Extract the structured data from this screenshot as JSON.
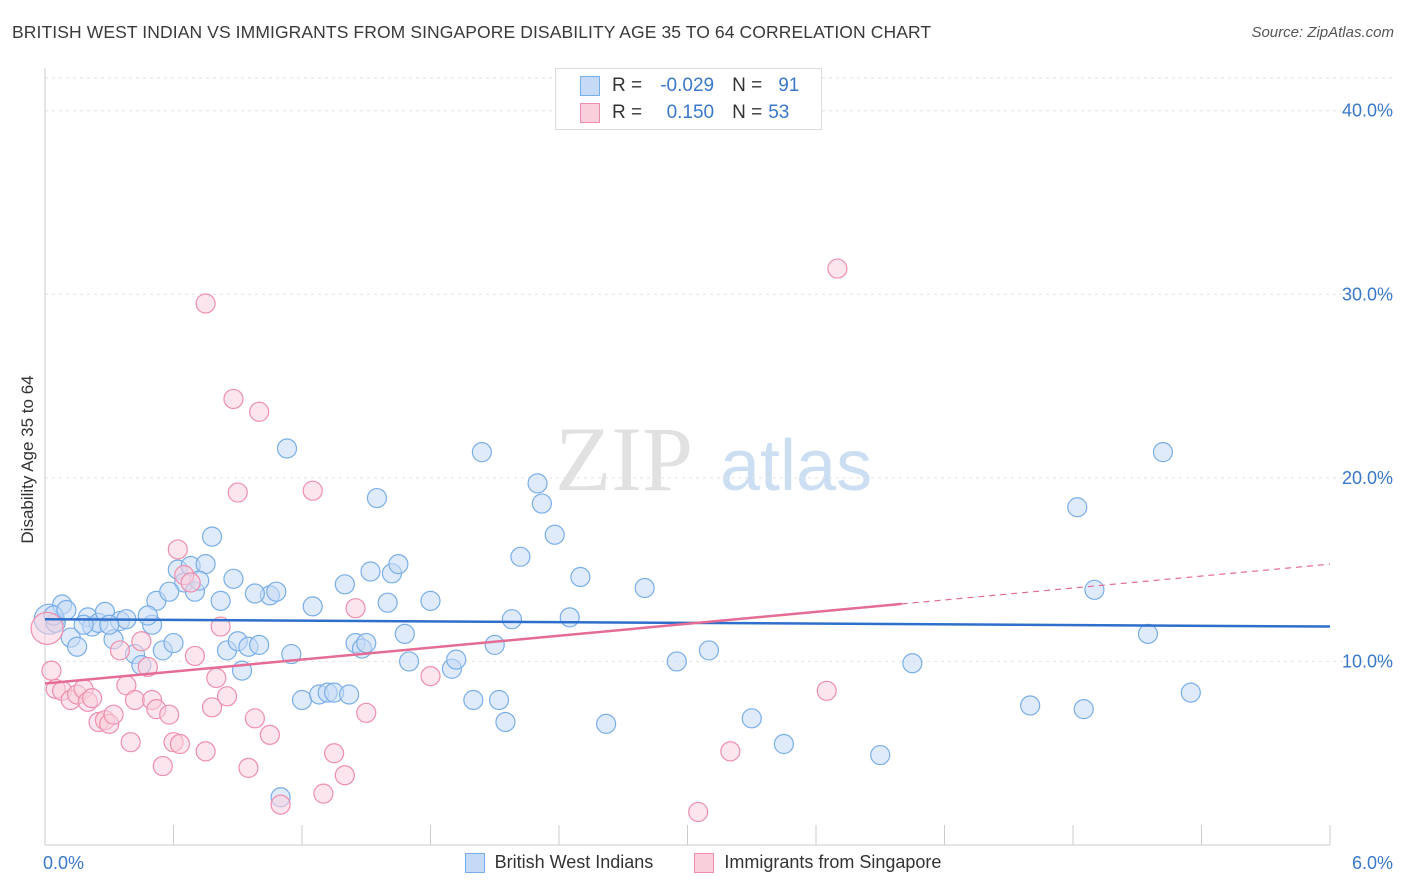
{
  "title": "BRITISH WEST INDIAN VS IMMIGRANTS FROM SINGAPORE DISABILITY AGE 35 TO 64 CORRELATION CHART",
  "source": "Source: ZipAtlas.com",
  "watermark": {
    "zip": "ZIP",
    "atlas": "atlas"
  },
  "correlation_legend": [
    {
      "r_label": "R =",
      "r_value": "-0.029",
      "n_label": "N =",
      "n_value": "91",
      "color": "#7aaee8",
      "fill": "#c5daf6"
    },
    {
      "r_label": "R =",
      "r_value": "0.150",
      "n_label": "N =",
      "n_value": "53",
      "color": "#ee8fae",
      "fill": "#f9cfdc"
    }
  ],
  "chart_data": {
    "type": "scatter",
    "title": "BRITISH WEST INDIAN VS IMMIGRANTS FROM SINGAPORE DISABILITY AGE 35 TO 64 CORRELATION CHART",
    "xlabel": "",
    "ylabel": "Disability Age 35 to 64",
    "xlim": [
      0,
      6
    ],
    "ylim": [
      0,
      42
    ],
    "x_tick_labels": [
      "0.0%",
      "6.0%"
    ],
    "y_ticks": [
      10,
      20,
      30,
      40
    ],
    "y_tick_labels": [
      "10.0%",
      "20.0%",
      "30.0%",
      "40.0%"
    ],
    "grid": "horizontal dashed",
    "legend_position": "bottom",
    "series": [
      {
        "name": "British West Indians",
        "color": "#7aaee8",
        "fill": "#c5daf6",
        "line_color": "#2f6fcc",
        "trend": {
          "x": [
            0,
            6
          ],
          "y": [
            12.3,
            11.9
          ]
        },
        "points": [
          [
            0.02,
            12.3
          ],
          [
            0.05,
            12.1
          ],
          [
            0.08,
            13.1
          ],
          [
            0.12,
            11.3
          ],
          [
            0.15,
            10.8
          ],
          [
            0.2,
            12.4
          ],
          [
            0.22,
            11.9
          ],
          [
            0.25,
            12.1
          ],
          [
            0.28,
            12.7
          ],
          [
            0.32,
            11.2
          ],
          [
            0.35,
            12.2
          ],
          [
            0.38,
            12.3
          ],
          [
            0.42,
            10.4
          ],
          [
            0.45,
            9.8
          ],
          [
            0.5,
            12.0
          ],
          [
            0.52,
            13.3
          ],
          [
            0.55,
            10.6
          ],
          [
            0.6,
            11.0
          ],
          [
            0.62,
            15.0
          ],
          [
            0.65,
            14.3
          ],
          [
            0.68,
            15.2
          ],
          [
            0.7,
            13.8
          ],
          [
            0.75,
            15.3
          ],
          [
            0.78,
            16.8
          ],
          [
            0.82,
            13.3
          ],
          [
            0.85,
            10.6
          ],
          [
            0.88,
            14.5
          ],
          [
            0.9,
            11.1
          ],
          [
            0.92,
            9.5
          ],
          [
            0.95,
            10.8
          ],
          [
            1.05,
            13.6
          ],
          [
            1.08,
            13.8
          ],
          [
            1.1,
            2.6
          ],
          [
            1.15,
            10.4
          ],
          [
            1.2,
            7.9
          ],
          [
            1.25,
            13.0
          ],
          [
            1.28,
            8.2
          ],
          [
            1.32,
            8.3
          ],
          [
            1.35,
            8.3
          ],
          [
            1.4,
            14.2
          ],
          [
            1.45,
            11.0
          ],
          [
            1.48,
            10.7
          ],
          [
            1.52,
            14.9
          ],
          [
            1.55,
            18.9
          ],
          [
            1.6,
            13.2
          ],
          [
            1.62,
            14.8
          ],
          [
            1.65,
            15.3
          ],
          [
            1.68,
            11.5
          ],
          [
            1.7,
            10.0
          ],
          [
            1.8,
            13.3
          ],
          [
            1.9,
            9.6
          ],
          [
            1.92,
            10.1
          ],
          [
            2.0,
            7.9
          ],
          [
            2.1,
            10.9
          ],
          [
            2.12,
            7.9
          ],
          [
            2.15,
            6.7
          ],
          [
            2.18,
            12.3
          ],
          [
            2.22,
            15.7
          ],
          [
            2.3,
            19.7
          ],
          [
            2.32,
            18.6
          ],
          [
            2.38,
            16.9
          ],
          [
            2.5,
            14.6
          ],
          [
            2.62,
            6.6
          ],
          [
            2.8,
            14.0
          ],
          [
            2.95,
            10.0
          ],
          [
            3.1,
            10.6
          ],
          [
            3.3,
            6.9
          ],
          [
            3.45,
            5.5
          ],
          [
            3.9,
            4.9
          ],
          [
            4.05,
            9.9
          ],
          [
            4.6,
            7.6
          ],
          [
            4.85,
            7.4
          ],
          [
            4.9,
            13.9
          ],
          [
            5.15,
            11.5
          ],
          [
            5.35,
            8.3
          ],
          [
            1.13,
            21.6
          ],
          [
            2.04,
            21.4
          ],
          [
            4.82,
            18.4
          ],
          [
            5.22,
            21.4
          ],
          [
            0.04,
            12.5
          ],
          [
            0.1,
            12.8
          ],
          [
            0.3,
            12.0
          ],
          [
            0.48,
            12.5
          ],
          [
            0.72,
            14.4
          ],
          [
            1.0,
            10.9
          ],
          [
            1.42,
            8.2
          ],
          [
            1.5,
            11.0
          ],
          [
            0.58,
            13.8
          ],
          [
            0.18,
            12.0
          ],
          [
            0.98,
            13.7
          ],
          [
            2.45,
            12.4
          ]
        ]
      },
      {
        "name": "Immigrants from Singapore",
        "color": "#ee8fae",
        "fill": "#f9cfdc",
        "line_color": "#e46c95",
        "trend": {
          "x": [
            0,
            6
          ],
          "y": [
            8.8,
            15.3
          ]
        },
        "trend_solid_until_x": 4.0,
        "points": [
          [
            0.01,
            11.8
          ],
          [
            0.03,
            9.5
          ],
          [
            0.05,
            8.5
          ],
          [
            0.08,
            8.4
          ],
          [
            0.12,
            7.9
          ],
          [
            0.15,
            8.2
          ],
          [
            0.18,
            8.5
          ],
          [
            0.2,
            7.8
          ],
          [
            0.22,
            8.0
          ],
          [
            0.25,
            6.7
          ],
          [
            0.28,
            6.8
          ],
          [
            0.3,
            6.6
          ],
          [
            0.32,
            7.1
          ],
          [
            0.35,
            10.6
          ],
          [
            0.38,
            8.7
          ],
          [
            0.4,
            5.6
          ],
          [
            0.42,
            7.9
          ],
          [
            0.45,
            11.1
          ],
          [
            0.48,
            9.7
          ],
          [
            0.5,
            7.9
          ],
          [
            0.52,
            7.4
          ],
          [
            0.55,
            4.3
          ],
          [
            0.58,
            7.1
          ],
          [
            0.6,
            5.6
          ],
          [
            0.62,
            16.1
          ],
          [
            0.65,
            14.7
          ],
          [
            0.68,
            14.3
          ],
          [
            0.7,
            10.3
          ],
          [
            0.75,
            5.1
          ],
          [
            0.78,
            7.5
          ],
          [
            0.8,
            9.1
          ],
          [
            0.82,
            11.9
          ],
          [
            0.85,
            8.1
          ],
          [
            0.88,
            24.3
          ],
          [
            0.9,
            19.2
          ],
          [
            0.95,
            4.2
          ],
          [
            0.98,
            6.9
          ],
          [
            1.0,
            23.6
          ],
          [
            1.05,
            6.0
          ],
          [
            1.1,
            2.2
          ],
          [
            1.25,
            19.3
          ],
          [
            1.3,
            2.8
          ],
          [
            1.35,
            5.0
          ],
          [
            1.4,
            3.8
          ],
          [
            1.45,
            12.9
          ],
          [
            1.5,
            7.2
          ],
          [
            1.8,
            9.2
          ],
          [
            3.05,
            1.8
          ],
          [
            3.2,
            5.1
          ],
          [
            3.65,
            8.4
          ],
          [
            3.7,
            31.4
          ],
          [
            0.75,
            29.5
          ],
          [
            0.63,
            5.5
          ]
        ]
      }
    ]
  }
}
